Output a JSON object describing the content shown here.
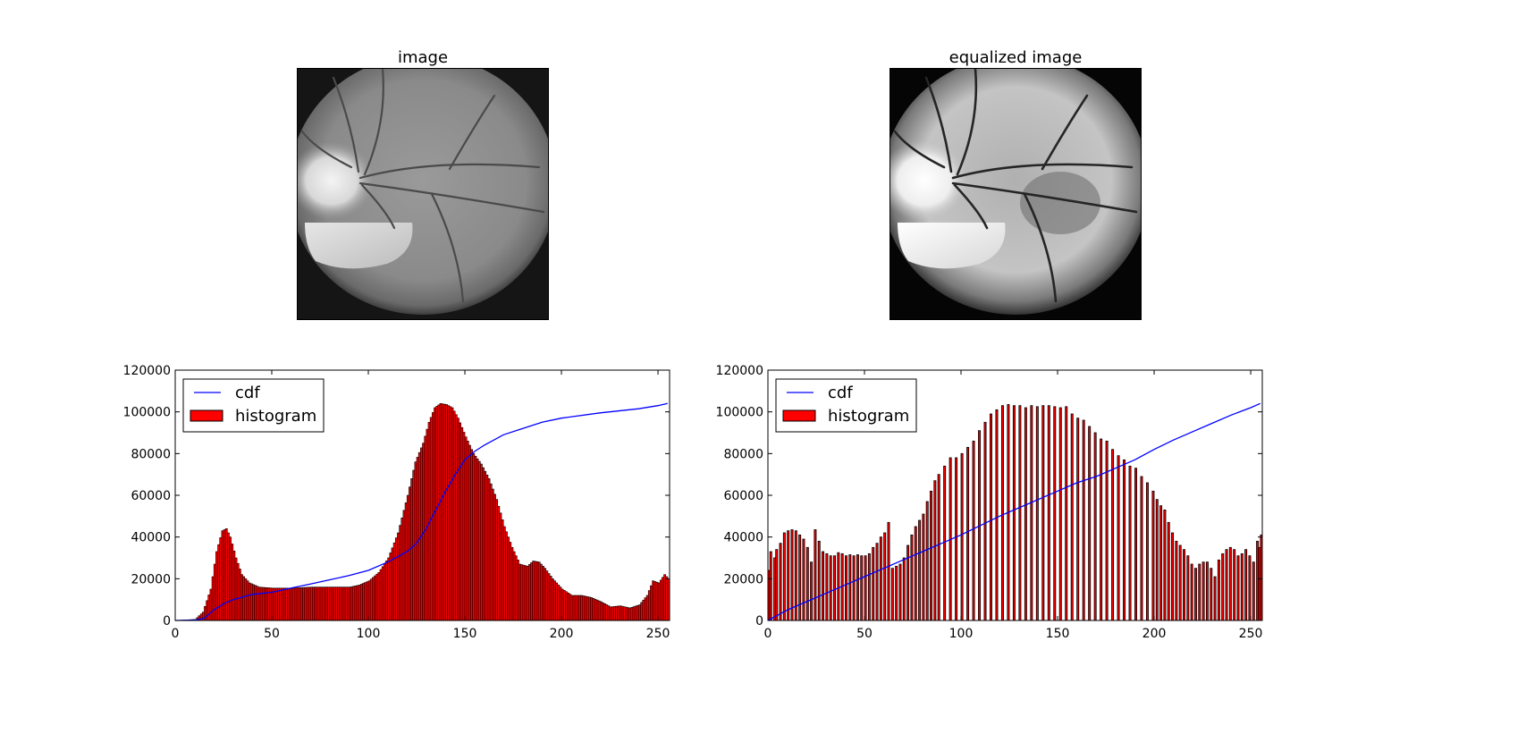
{
  "figure": {
    "images": [
      {
        "title": "image"
      },
      {
        "title": "equalized image"
      }
    ]
  },
  "chart_data": [
    {
      "type": "bar",
      "title": "",
      "xlabel": "",
      "ylabel": "",
      "xlim": [
        0,
        256
      ],
      "ylim": [
        0,
        120000
      ],
      "xticks": [
        "0",
        "50",
        "100",
        "150",
        "200",
        "250"
      ],
      "yticks": [
        "0",
        "20000",
        "40000",
        "60000",
        "80000",
        "100000",
        "120000"
      ],
      "legend": {
        "placement": "top-left",
        "entries": [
          "cdf",
          "histogram"
        ]
      },
      "colors": {
        "histogram": "#ff0000",
        "cdf": "#0000ff"
      },
      "series": [
        {
          "name": "histogram",
          "kind": "bar",
          "control_points": [
            [
              0,
              0
            ],
            [
              10,
              500
            ],
            [
              14,
              4000
            ],
            [
              18,
              15000
            ],
            [
              21,
              33000
            ],
            [
              24,
              43000
            ],
            [
              26,
              44000
            ],
            [
              28,
              40000
            ],
            [
              31,
              30000
            ],
            [
              34,
              22000
            ],
            [
              38,
              18000
            ],
            [
              43,
              16000
            ],
            [
              50,
              15500
            ],
            [
              60,
              15500
            ],
            [
              70,
              16000
            ],
            [
              80,
              16000
            ],
            [
              90,
              16000
            ],
            [
              95,
              17000
            ],
            [
              100,
              19000
            ],
            [
              105,
              23000
            ],
            [
              110,
              30000
            ],
            [
              115,
              42000
            ],
            [
              120,
              60000
            ],
            [
              124,
              76000
            ],
            [
              128,
              85000
            ],
            [
              131,
              95000
            ],
            [
              134,
              102000
            ],
            [
              137,
              104000
            ],
            [
              140,
              103500
            ],
            [
              143,
              102000
            ],
            [
              146,
              97000
            ],
            [
              150,
              88000
            ],
            [
              154,
              80000
            ],
            [
              158,
              75000
            ],
            [
              162,
              68000
            ],
            [
              166,
              58000
            ],
            [
              170,
              45000
            ],
            [
              174,
              35000
            ],
            [
              178,
              27000
            ],
            [
              182,
              26000
            ],
            [
              185,
              28500
            ],
            [
              188,
              28000
            ],
            [
              191,
              25000
            ],
            [
              195,
              20000
            ],
            [
              200,
              15000
            ],
            [
              205,
              12000
            ],
            [
              210,
              12000
            ],
            [
              215,
              11000
            ],
            [
              220,
              9000
            ],
            [
              225,
              6500
            ],
            [
              230,
              7000
            ],
            [
              235,
              6000
            ],
            [
              240,
              7500
            ],
            [
              244,
              12000
            ],
            [
              247,
              19000
            ],
            [
              250,
              18000
            ],
            [
              253,
              22000
            ],
            [
              255,
              20000
            ]
          ]
        },
        {
          "name": "cdf",
          "kind": "line",
          "points": [
            [
              0,
              0
            ],
            [
              10,
              200
            ],
            [
              15,
              1000
            ],
            [
              20,
              5000
            ],
            [
              25,
              8000
            ],
            [
              30,
              10000
            ],
            [
              40,
              12500
            ],
            [
              50,
              13500
            ],
            [
              60,
              15500
            ],
            [
              70,
              17500
            ],
            [
              80,
              19500
            ],
            [
              90,
              21500
            ],
            [
              100,
              24000
            ],
            [
              110,
              28000
            ],
            [
              120,
              33000
            ],
            [
              125,
              37000
            ],
            [
              130,
              44000
            ],
            [
              135,
              53000
            ],
            [
              140,
              62000
            ],
            [
              145,
              70000
            ],
            [
              150,
              77000
            ],
            [
              155,
              81000
            ],
            [
              160,
              84000
            ],
            [
              170,
              89000
            ],
            [
              180,
              92000
            ],
            [
              190,
              95000
            ],
            [
              200,
              97000
            ],
            [
              220,
              99500
            ],
            [
              240,
              101500
            ],
            [
              250,
              103000
            ],
            [
              255,
              104000
            ]
          ]
        }
      ]
    },
    {
      "type": "bar",
      "title": "",
      "xlabel": "",
      "ylabel": "",
      "xlim": [
        0,
        256
      ],
      "ylim": [
        0,
        120000
      ],
      "xticks": [
        "0",
        "50",
        "100",
        "150",
        "200",
        "250"
      ],
      "yticks": [
        "0",
        "20000",
        "40000",
        "60000",
        "80000",
        "100000",
        "120000"
      ],
      "legend": {
        "placement": "top-left",
        "entries": [
          "cdf",
          "histogram"
        ]
      },
      "colors": {
        "histogram": "#ff0000",
        "cdf": "#0000ff"
      },
      "series": [
        {
          "name": "histogram",
          "kind": "bar",
          "points": [
            [
              0,
              24000
            ],
            [
              1,
              33000
            ],
            [
              3,
              30000
            ],
            [
              4,
              34000
            ],
            [
              6,
              37000
            ],
            [
              8,
              42000
            ],
            [
              10,
              43000
            ],
            [
              12,
              43500
            ],
            [
              14,
              43000
            ],
            [
              16,
              41000
            ],
            [
              18,
              39000
            ],
            [
              20,
              35000
            ],
            [
              22,
              28000
            ],
            [
              24,
              43500
            ],
            [
              26,
              38000
            ],
            [
              28,
              33000
            ],
            [
              30,
              32000
            ],
            [
              32,
              31000
            ],
            [
              34,
              31000
            ],
            [
              36,
              32500
            ],
            [
              38,
              32000
            ],
            [
              40,
              31000
            ],
            [
              42,
              31500
            ],
            [
              44,
              31000
            ],
            [
              46,
              31500
            ],
            [
              48,
              31000
            ],
            [
              50,
              31000
            ],
            [
              52,
              32000
            ],
            [
              54,
              35000
            ],
            [
              56,
              37000
            ],
            [
              58,
              40000
            ],
            [
              60,
              42000
            ],
            [
              62,
              47000
            ],
            [
              64,
              25000
            ],
            [
              66,
              26000
            ],
            [
              68,
              27000
            ],
            [
              70,
              30000
            ],
            [
              72,
              36000
            ],
            [
              74,
              41000
            ],
            [
              76,
              45000
            ],
            [
              78,
              48000
            ],
            [
              80,
              51000
            ],
            [
              82,
              57000
            ],
            [
              84,
              62000
            ],
            [
              86,
              67000
            ],
            [
              88,
              70000
            ],
            [
              91,
              74000
            ],
            [
              94,
              78000
            ],
            [
              97,
              78000
            ],
            [
              100,
              80000
            ],
            [
              103,
              83000
            ],
            [
              106,
              86000
            ],
            [
              109,
              91000
            ],
            [
              112,
              95000
            ],
            [
              115,
              99000
            ],
            [
              118,
              101000
            ],
            [
              121,
              103000
            ],
            [
              124,
              103500
            ],
            [
              127,
              103000
            ],
            [
              130,
              103000
            ],
            [
              133,
              102000
            ],
            [
              136,
              103000
            ],
            [
              139,
              102500
            ],
            [
              142,
              103000
            ],
            [
              145,
              103000
            ],
            [
              148,
              102500
            ],
            [
              151,
              102000
            ],
            [
              154,
              102500
            ],
            [
              157,
              99000
            ],
            [
              160,
              97000
            ],
            [
              163,
              96000
            ],
            [
              166,
              93000
            ],
            [
              169,
              90000
            ],
            [
              172,
              87000
            ],
            [
              175,
              86000
            ],
            [
              178,
              82000
            ],
            [
              181,
              79000
            ],
            [
              184,
              77000
            ],
            [
              187,
              74000
            ],
            [
              190,
              73000
            ],
            [
              193,
              69000
            ],
            [
              196,
              66000
            ],
            [
              199,
              62000
            ],
            [
              201,
              58000
            ],
            [
              203,
              55000
            ],
            [
              205,
              53000
            ],
            [
              207,
              47000
            ],
            [
              209,
              42000
            ],
            [
              211,
              38000
            ],
            [
              213,
              36000
            ],
            [
              215,
              34000
            ],
            [
              217,
              31000
            ],
            [
              219,
              27000
            ],
            [
              221,
              25000
            ],
            [
              223,
              27000
            ],
            [
              225,
              28000
            ],
            [
              227,
              28000
            ],
            [
              229,
              25000
            ],
            [
              231,
              21000
            ],
            [
              233,
              29000
            ],
            [
              235,
              32000
            ],
            [
              237,
              34000
            ],
            [
              239,
              35000
            ],
            [
              241,
              34000
            ],
            [
              243,
              31000
            ],
            [
              245,
              32000
            ],
            [
              247,
              34000
            ],
            [
              249,
              31000
            ],
            [
              251,
              28000
            ],
            [
              253,
              38000
            ],
            [
              254,
              35000
            ],
            [
              255,
              41000
            ]
          ]
        },
        {
          "name": "cdf",
          "kind": "line",
          "points": [
            [
              0,
              0
            ],
            [
              5,
              2500
            ],
            [
              10,
              5000
            ],
            [
              20,
              9000
            ],
            [
              30,
              13000
            ],
            [
              40,
              17000
            ],
            [
              50,
              21000
            ],
            [
              60,
              25000
            ],
            [
              70,
              29000
            ],
            [
              80,
              33000
            ],
            [
              90,
              37000
            ],
            [
              100,
              41000
            ],
            [
              110,
              45500
            ],
            [
              120,
              50000
            ],
            [
              130,
              54000
            ],
            [
              140,
              58000
            ],
            [
              150,
              62000
            ],
            [
              160,
              66000
            ],
            [
              170,
              69000
            ],
            [
              180,
              73000
            ],
            [
              190,
              77000
            ],
            [
              200,
              82000
            ],
            [
              210,
              86500
            ],
            [
              220,
              90500
            ],
            [
              230,
              94500
            ],
            [
              240,
              98500
            ],
            [
              250,
              102000
            ],
            [
              255,
              104000
            ]
          ]
        }
      ]
    }
  ]
}
